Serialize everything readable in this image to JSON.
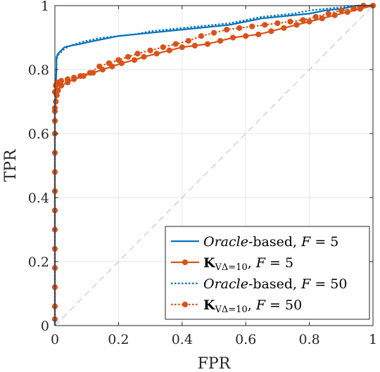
{
  "chart_data": {
    "type": "line",
    "title": "",
    "xlabel": "FPR",
    "ylabel": "TPR",
    "xlim": [
      0,
      1
    ],
    "ylim": [
      0,
      1
    ],
    "x_ticks": [
      "0",
      "0.2",
      "0.4",
      "0.6",
      "0.8",
      "1"
    ],
    "y_ticks": [
      "0",
      "0.2",
      "0.4",
      "0.6",
      "0.8",
      "1"
    ],
    "grid": true,
    "legend_position": "bottom-right",
    "diagonal_reference": true,
    "series": [
      {
        "name": "Oracle-based, F = 5",
        "label_parts": [
          "Oracle",
          "-based, ",
          "F",
          " = 5"
        ],
        "color": "#0072BD",
        "style": "solid",
        "marker": "none",
        "x": [
          0,
          0,
          0.005,
          0.005,
          0.01,
          0.02,
          0.03,
          0.05,
          0.08,
          0.1,
          0.15,
          0.2,
          0.25,
          0.3,
          0.35,
          0.4,
          0.45,
          0.5,
          0.55,
          0.6,
          0.65,
          0.7,
          0.75,
          0.8,
          0.85,
          0.9,
          0.95,
          1
        ],
        "y": [
          0,
          0.68,
          0.8,
          0.84,
          0.85,
          0.86,
          0.87,
          0.875,
          0.88,
          0.885,
          0.895,
          0.905,
          0.91,
          0.915,
          0.92,
          0.925,
          0.93,
          0.935,
          0.94,
          0.95,
          0.96,
          0.965,
          0.97,
          0.975,
          0.985,
          0.99,
          1,
          1
        ]
      },
      {
        "name": "KVΔ=10, F = 5",
        "label_parts": [
          "K",
          "VΔ=10",
          ", ",
          "F",
          " = 5"
        ],
        "color": "#D95319",
        "style": "solid",
        "marker": "circle",
        "x": [
          0,
          0,
          0,
          0,
          0,
          0,
          0,
          0,
          0,
          0,
          0,
          0,
          0,
          0,
          0.003,
          0.006,
          0.01,
          0.02,
          0.04,
          0.06,
          0.09,
          0.12,
          0.15,
          0.18,
          0.21,
          0.25,
          0.28,
          0.32,
          0.36,
          0.4,
          0.44,
          0.48,
          0.52,
          0.56,
          0.6,
          0.64,
          0.68,
          0.72,
          0.76,
          0.8,
          0.84,
          0.88,
          0.92,
          0.96,
          1
        ],
        "y": [
          0.02,
          0.06,
          0.12,
          0.18,
          0.24,
          0.3,
          0.36,
          0.42,
          0.48,
          0.54,
          0.6,
          0.64,
          0.67,
          0.68,
          0.7,
          0.72,
          0.735,
          0.75,
          0.76,
          0.77,
          0.78,
          0.79,
          0.8,
          0.81,
          0.82,
          0.83,
          0.84,
          0.85,
          0.86,
          0.87,
          0.875,
          0.88,
          0.89,
          0.9,
          0.905,
          0.91,
          0.92,
          0.93,
          0.94,
          0.95,
          0.96,
          0.97,
          0.98,
          0.99,
          1
        ]
      },
      {
        "name": "Oracle-based, F = 50",
        "label_parts": [
          "Oracle",
          "-based, ",
          "F",
          " = 50"
        ],
        "color": "#0072BD",
        "style": "dotted",
        "marker": "none",
        "x": [
          0,
          0,
          0.005,
          0.005,
          0.01,
          0.02,
          0.03,
          0.05,
          0.08,
          0.1,
          0.15,
          0.2,
          0.25,
          0.3,
          0.35,
          0.4,
          0.45,
          0.5,
          0.55,
          0.6,
          0.65,
          0.7,
          0.75,
          0.8,
          0.85,
          0.9,
          0.95,
          1
        ],
        "y": [
          0,
          0.7,
          0.81,
          0.83,
          0.845,
          0.855,
          0.865,
          0.875,
          0.885,
          0.89,
          0.9,
          0.905,
          0.91,
          0.92,
          0.925,
          0.93,
          0.935,
          0.94,
          0.945,
          0.955,
          0.965,
          0.97,
          0.975,
          0.985,
          0.99,
          0.995,
          1,
          1
        ]
      },
      {
        "name": "KVΔ=10, F = 50",
        "label_parts": [
          "K",
          "VΔ=10",
          ", ",
          "F",
          " = 50"
        ],
        "color": "#D95319",
        "style": "dotted",
        "marker": "circle",
        "x": [
          0,
          0.003,
          0.006,
          0.01,
          0.02,
          0.04,
          0.06,
          0.08,
          0.11,
          0.14,
          0.17,
          0.2,
          0.23,
          0.26,
          0.3,
          0.34,
          0.38,
          0.42,
          0.46,
          0.5,
          0.54,
          0.58,
          0.62,
          0.66,
          0.7,
          0.74,
          0.78,
          0.82,
          0.86,
          0.9,
          0.94,
          0.97,
          1
        ],
        "y": [
          0.73,
          0.75,
          0.755,
          0.76,
          0.765,
          0.77,
          0.775,
          0.78,
          0.79,
          0.81,
          0.82,
          0.83,
          0.84,
          0.85,
          0.86,
          0.87,
          0.88,
          0.89,
          0.905,
          0.915,
          0.925,
          0.93,
          0.935,
          0.94,
          0.945,
          0.95,
          0.955,
          0.965,
          0.975,
          0.985,
          0.99,
          1,
          1
        ]
      }
    ]
  }
}
